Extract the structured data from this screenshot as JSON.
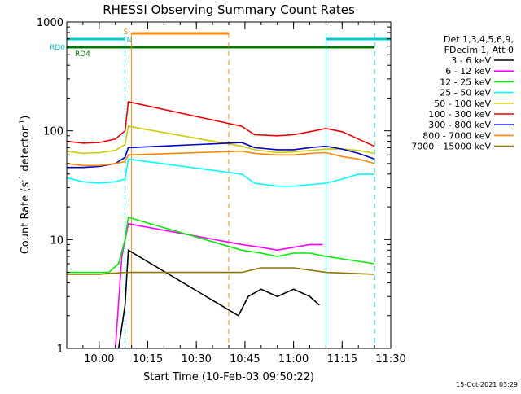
{
  "chart_data": {
    "type": "line",
    "title": "RHESSI Observing Summary Count Rates",
    "xlabel": "Start Time (10-Feb-03 09:50:22)",
    "ylabel": "Count Rate (s⁻¹ detector⁻¹)",
    "xlim": [
      "09:50",
      "11:30"
    ],
    "ylim": [
      1,
      1000
    ],
    "yscale": "log",
    "x_ticks": [
      "10:00",
      "10:15",
      "10:30",
      "10:45",
      "11:00",
      "11:15",
      "11:30"
    ],
    "y_ticks": [
      "1",
      "10",
      "100",
      "1000"
    ],
    "legend_position": "right",
    "legend_header": [
      "Det 1,3,4,5,6,9,",
      "FDecim 1, Att 0"
    ],
    "timestamp": "15-Oct-2021 03:29",
    "flags": [
      {
        "label": "RD0",
        "color": "#00cccc",
        "segments": [
          [
            "09:50",
            "10:08"
          ],
          [
            "11:10",
            "11:30"
          ]
        ]
      },
      {
        "label": "RD4",
        "color": "#007700",
        "segments": [
          [
            "09:50",
            "11:25"
          ]
        ]
      },
      {
        "label": "S",
        "color": "#ff8800",
        "segments": [
          [
            "10:10",
            "10:40"
          ]
        ]
      },
      {
        "label": "N",
        "color": "#00cccc",
        "segments": []
      }
    ],
    "vertical_lines": [
      {
        "t": "10:08",
        "color": "#00cccc",
        "style": "dashed"
      },
      {
        "t": "10:10",
        "color": "#ff8800",
        "style": "solid"
      },
      {
        "t": "10:40",
        "color": "#ff8800",
        "style": "dashed"
      },
      {
        "t": "11:10",
        "color": "#00cccc",
        "style": "solid"
      },
      {
        "t": "11:25",
        "color": "#00cccc",
        "style": "dashed"
      }
    ],
    "series": [
      {
        "name": "3 - 6 keV",
        "color": "#000000",
        "x": [
          "10:06",
          "10:08",
          "10:09",
          "10:43",
          "10:46",
          "10:50",
          "10:55",
          "11:00",
          "11:05",
          "11:08"
        ],
        "y": [
          1,
          2.5,
          8,
          2,
          3,
          3.5,
          3,
          3.5,
          3,
          2.5
        ]
      },
      {
        "name": "6 - 12 keV",
        "color": "#ff00ff",
        "x": [
          "10:05",
          "10:07",
          "10:09",
          "10:44",
          "10:50",
          "10:55",
          "11:00",
          "11:05",
          "11:09"
        ],
        "y": [
          1,
          7,
          14,
          9,
          8.5,
          8,
          8.5,
          9,
          9
        ]
      },
      {
        "name": "12 - 25 keV",
        "color": "#00ee00",
        "x": [
          "09:50",
          "10:03",
          "10:06",
          "10:08",
          "10:09",
          "10:44",
          "10:50",
          "10:55",
          "11:00",
          "11:05",
          "11:10",
          "11:25"
        ],
        "y": [
          5,
          5,
          6,
          10,
          16,
          8,
          7.5,
          7,
          7.5,
          7.5,
          7,
          6
        ]
      },
      {
        "name": "25 - 50 keV",
        "color": "#00ffff",
        "x": [
          "09:50",
          "09:55",
          "10:00",
          "10:05",
          "10:08",
          "10:09",
          "10:44",
          "10:48",
          "10:55",
          "11:00",
          "11:05",
          "11:10",
          "11:15",
          "11:20",
          "11:25"
        ],
        "y": [
          37,
          34,
          33,
          34,
          36,
          55,
          40,
          33,
          31,
          31,
          32,
          33,
          36,
          40,
          40
        ]
      },
      {
        "name": "50 - 100 keV",
        "color": "#cccc00",
        "x": [
          "09:50",
          "09:55",
          "10:00",
          "10:05",
          "10:08",
          "10:09",
          "10:44",
          "10:48",
          "10:55",
          "11:00",
          "11:05",
          "11:10",
          "11:15",
          "11:20",
          "11:25"
        ],
        "y": [
          65,
          62,
          63,
          66,
          75,
          110,
          72,
          67,
          63,
          64,
          66,
          68,
          68,
          66,
          62
        ]
      },
      {
        "name": "100 - 300 keV",
        "color": "#ee0000",
        "x": [
          "09:50",
          "09:55",
          "10:00",
          "10:05",
          "10:08",
          "10:09",
          "10:44",
          "10:48",
          "10:55",
          "11:00",
          "11:05",
          "11:10",
          "11:15",
          "11:20",
          "11:25"
        ],
        "y": [
          80,
          77,
          78,
          84,
          100,
          185,
          110,
          92,
          90,
          92,
          98,
          105,
          98,
          84,
          72
        ]
      },
      {
        "name": "300 - 800 keV",
        "color": "#0000cc",
        "x": [
          "09:50",
          "09:55",
          "10:00",
          "10:05",
          "10:08",
          "10:09",
          "10:44",
          "10:48",
          "10:55",
          "11:00",
          "11:05",
          "11:10",
          "11:15",
          "11:20",
          "11:25"
        ],
        "y": [
          46,
          46,
          47,
          50,
          57,
          70,
          78,
          70,
          67,
          67,
          70,
          72,
          68,
          62,
          55
        ]
      },
      {
        "name": "800 - 7000 keV",
        "color": "#ff8800",
        "x": [
          "09:50",
          "09:55",
          "10:00",
          "10:05",
          "10:08",
          "10:09",
          "10:44",
          "10:48",
          "10:55",
          "11:00",
          "11:05",
          "11:10",
          "11:15",
          "11:20",
          "11:25"
        ],
        "y": [
          50,
          48,
          48,
          50,
          52,
          60,
          65,
          62,
          60,
          60,
          62,
          63,
          58,
          55,
          50
        ]
      },
      {
        "name": "7000 - 15000 keV",
        "color": "#887700",
        "x": [
          "09:50",
          "10:00",
          "10:08",
          "10:44",
          "10:50",
          "11:00",
          "11:10",
          "11:25"
        ],
        "y": [
          4.8,
          4.8,
          5,
          5,
          5.5,
          5.5,
          5,
          4.8
        ]
      }
    ]
  }
}
